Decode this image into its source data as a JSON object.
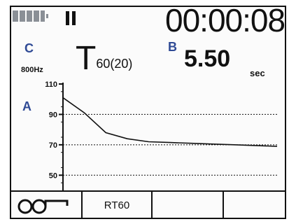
{
  "status": {
    "battery_icon": "battery-icon",
    "pause_icon": "pause-icon",
    "timer": "00:00:08"
  },
  "markers": {
    "a": "A",
    "b": "B",
    "c": "C"
  },
  "frequency": "800Hz",
  "parameter": {
    "symbol": "T",
    "subscript": "60(20)"
  },
  "measurement": {
    "value": "5.50",
    "unit": "sec"
  },
  "chart_data": {
    "type": "line",
    "ylim": [
      40,
      110
    ],
    "yticks": [
      110,
      90,
      70,
      50
    ],
    "x": [
      0,
      1,
      2,
      3,
      4,
      5,
      6,
      7,
      8,
      9,
      10
    ],
    "y": [
      101,
      91,
      78,
      74,
      72,
      71.5,
      71,
      70.5,
      70,
      69.5,
      69
    ],
    "grid": "horizontal-dotted"
  },
  "softkeys": [
    {
      "icon": "headphones-icon",
      "label": ""
    },
    {
      "label": "RT60"
    },
    {
      "label": ""
    },
    {
      "label": ""
    }
  ],
  "colors": {
    "marker": "#2f4a95",
    "lcd": "#fbfbfb"
  }
}
